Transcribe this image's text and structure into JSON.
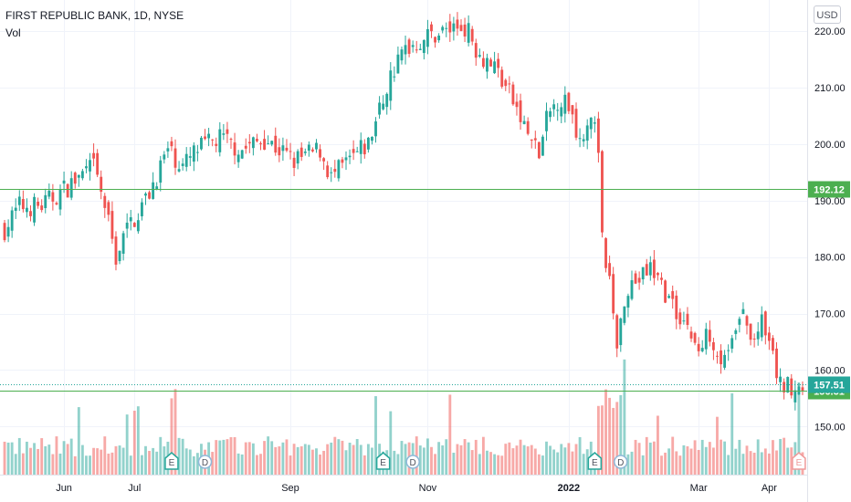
{
  "header": {
    "title": "FIRST REPUBLIC BANK, 1D, NYSE",
    "vol_label": "Vol",
    "currency": "USD"
  },
  "colors": {
    "up": "#26a69a",
    "down": "#ef5350",
    "hline": "#4caf50",
    "price_last": "#26a69a",
    "grid": "#f0f3fa"
  },
  "chart_data": {
    "type": "candlestick",
    "y_ticks": [
      "150.00",
      "160.00",
      "170.00",
      "180.00",
      "190.00",
      "200.00",
      "210.00",
      "220.00"
    ],
    "y_tick_values": [
      150,
      160,
      170,
      180,
      190,
      200,
      210,
      220
    ],
    "ylim": [
      141.5,
      225.5
    ],
    "x_ticks": [
      {
        "label": "Jun",
        "index": 16
      },
      {
        "label": "Jul",
        "index": 35
      },
      {
        "label": "Sep",
        "index": 77
      },
      {
        "label": "Nov",
        "index": 114
      },
      {
        "label": "2022",
        "index": 152
      },
      {
        "label": "Mar",
        "index": 187
      },
      {
        "label": "Apr",
        "index": 206
      }
    ],
    "bar_count": 216,
    "horizontal_lines": [
      {
        "value": 192.12,
        "label": "192.12"
      },
      {
        "value": 156.31,
        "label": "156.31"
      }
    ],
    "last_price": {
      "value": 157.51,
      "label": "157.51"
    },
    "anchors": [
      [
        0,
        185
      ],
      [
        4,
        189
      ],
      [
        10,
        189
      ],
      [
        16,
        192
      ],
      [
        24,
        196
      ],
      [
        27,
        189
      ],
      [
        30,
        180
      ],
      [
        33,
        185
      ],
      [
        38,
        190
      ],
      [
        44,
        199
      ],
      [
        48,
        196
      ],
      [
        52,
        199
      ],
      [
        58,
        201
      ],
      [
        64,
        199
      ],
      [
        70,
        201
      ],
      [
        78,
        197
      ],
      [
        85,
        199
      ],
      [
        88,
        194
      ],
      [
        93,
        197
      ],
      [
        98,
        200
      ],
      [
        104,
        212
      ],
      [
        108,
        217
      ],
      [
        114,
        219
      ],
      [
        118,
        220
      ],
      [
        124,
        221
      ],
      [
        128,
        216
      ],
      [
        132,
        214
      ],
      [
        136,
        209
      ],
      [
        140,
        203
      ],
      [
        144,
        198
      ],
      [
        146,
        204
      ],
      [
        149,
        208
      ],
      [
        152,
        207
      ],
      [
        155,
        201
      ],
      [
        158,
        206
      ],
      [
        160,
        199
      ],
      [
        161,
        183
      ],
      [
        163,
        175
      ],
      [
        165,
        165
      ],
      [
        168,
        175
      ],
      [
        171,
        176
      ],
      [
        174,
        178
      ],
      [
        177,
        175
      ],
      [
        180,
        171
      ],
      [
        184,
        168
      ],
      [
        187,
        163
      ],
      [
        190,
        167
      ],
      [
        193,
        162
      ],
      [
        196,
        165
      ],
      [
        199,
        170
      ],
      [
        201,
        165
      ],
      [
        204,
        168
      ],
      [
        207,
        162
      ],
      [
        209,
        157
      ],
      [
        212,
        157.51
      ]
    ],
    "events": [
      {
        "type": "E",
        "index": 45
      },
      {
        "type": "D",
        "index": 54
      },
      {
        "type": "E",
        "index": 102
      },
      {
        "type": "D",
        "index": 110
      },
      {
        "type": "E",
        "index": 159
      },
      {
        "type": "D",
        "index": 166
      },
      {
        "type": "E",
        "index": 214
      }
    ]
  }
}
